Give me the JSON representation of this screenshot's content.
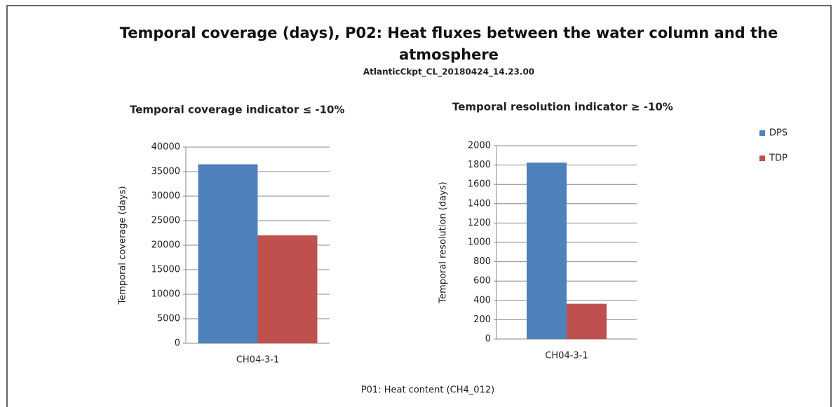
{
  "title": "Temporal coverage (days), P02: Heat fluxes between the water column and the atmosphere",
  "subtitle": "AtlanticCkpt_CL_20180424_14.23.00",
  "footer": "P01: Heat content (CH4_012)",
  "chart_data": [
    {
      "type": "bar",
      "title": "Temporal coverage indicator ≤ -10%",
      "y_label": "Temporal coverage (days)",
      "categories": [
        "CH04-3-1"
      ],
      "series": [
        {
          "name": "DPS",
          "color": "#4f81bd",
          "values": [
            36500
          ]
        },
        {
          "name": "TDP",
          "color": "#c0504d",
          "values": [
            22000
          ]
        }
      ],
      "ylim": [
        0,
        40000
      ],
      "yticks": [
        0,
        5000,
        10000,
        15000,
        20000,
        25000,
        30000,
        35000,
        40000
      ],
      "grid": true
    },
    {
      "type": "bar",
      "title": "Temporal resolution  indicator ≥ -10%",
      "y_label": "Temporal resolution (days)",
      "categories": [
        "CH04-3-1"
      ],
      "series": [
        {
          "name": "DPS",
          "color": "#4f81bd",
          "values": [
            1825
          ]
        },
        {
          "name": "TDP",
          "color": "#c0504d",
          "values": [
            365
          ]
        }
      ],
      "ylim": [
        0,
        2000
      ],
      "yticks": [
        0,
        200,
        400,
        600,
        800,
        1000,
        1200,
        1400,
        1600,
        1800,
        2000
      ],
      "grid": true
    }
  ]
}
